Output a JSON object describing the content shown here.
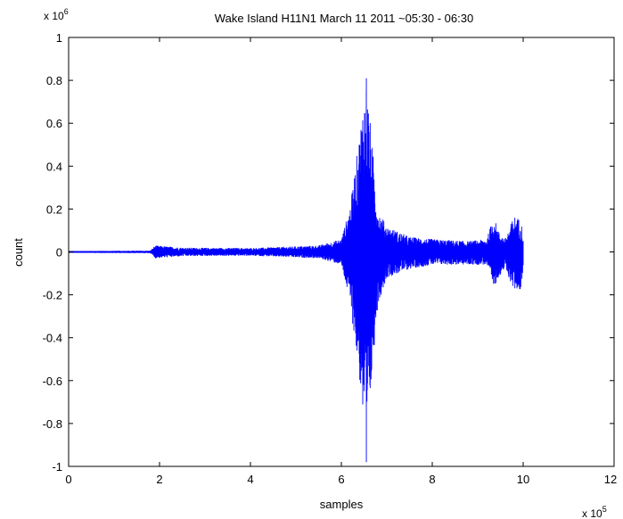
{
  "chart_data": {
    "type": "line",
    "title": "Wake Island H11N1 March 11 2011 ~05:30 - 06:30",
    "xlabel": "samples",
    "ylabel": "count",
    "x_exponent_label": "x 10",
    "x_exponent": "5",
    "y_exponent_label": "x 10",
    "y_exponent": "6",
    "xlim": [
      0,
      12
    ],
    "ylim": [
      -1,
      1
    ],
    "x_ticks": [
      {
        "value": 0,
        "label": "0"
      },
      {
        "value": 2,
        "label": "2"
      },
      {
        "value": 4,
        "label": "4"
      },
      {
        "value": 6,
        "label": "6"
      },
      {
        "value": 8,
        "label": "8"
      },
      {
        "value": 10,
        "label": "10"
      },
      {
        "value": 12,
        "label": "12"
      }
    ],
    "y_ticks": [
      {
        "value": -1,
        "label": "-1"
      },
      {
        "value": -0.8,
        "label": "-0.8"
      },
      {
        "value": -0.6,
        "label": "-0.6"
      },
      {
        "value": -0.4,
        "label": "-0.4"
      },
      {
        "value": -0.2,
        "label": "-0.2"
      },
      {
        "value": 0,
        "label": "0"
      },
      {
        "value": 0.2,
        "label": "0.2"
      },
      {
        "value": 0.4,
        "label": "0.4"
      },
      {
        "value": 0.6,
        "label": "0.6"
      },
      {
        "value": 0.8,
        "label": "0.8"
      },
      {
        "value": 1,
        "label": "1"
      }
    ],
    "grid": false,
    "color": "#0000ff",
    "series": [
      {
        "envelope": [
          {
            "x": 0.0,
            "upper": 0.004,
            "lower": -0.004
          },
          {
            "x": 1.8,
            "upper": 0.006,
            "lower": -0.006
          },
          {
            "x": 1.9,
            "upper": 0.03,
            "lower": -0.03
          },
          {
            "x": 2.5,
            "upper": 0.02,
            "lower": -0.02
          },
          {
            "x": 4.0,
            "upper": 0.018,
            "lower": -0.018
          },
          {
            "x": 5.5,
            "upper": 0.03,
            "lower": -0.03
          },
          {
            "x": 6.0,
            "upper": 0.06,
            "lower": -0.06
          },
          {
            "x": 6.2,
            "upper": 0.22,
            "lower": -0.25
          },
          {
            "x": 6.4,
            "upper": 0.55,
            "lower": -0.6
          },
          {
            "x": 6.5,
            "upper": 0.75,
            "lower": -0.85
          },
          {
            "x": 6.55,
            "upper": 0.81,
            "lower": -0.98
          },
          {
            "x": 6.7,
            "upper": 0.45,
            "lower": -0.5
          },
          {
            "x": 6.8,
            "upper": 0.2,
            "lower": -0.25
          },
          {
            "x": 7.0,
            "upper": 0.12,
            "lower": -0.12
          },
          {
            "x": 7.5,
            "upper": 0.07,
            "lower": -0.08
          },
          {
            "x": 8.0,
            "upper": 0.06,
            "lower": -0.06
          },
          {
            "x": 8.8,
            "upper": 0.05,
            "lower": -0.06
          },
          {
            "x": 9.2,
            "upper": 0.06,
            "lower": -0.06
          },
          {
            "x": 9.35,
            "upper": 0.17,
            "lower": -0.18
          },
          {
            "x": 9.45,
            "upper": 0.1,
            "lower": -0.12
          },
          {
            "x": 9.6,
            "upper": 0.06,
            "lower": -0.08
          },
          {
            "x": 9.8,
            "upper": 0.17,
            "lower": -0.18
          },
          {
            "x": 9.95,
            "upper": 0.15,
            "lower": -0.18
          },
          {
            "x": 10.0,
            "upper": 0.08,
            "lower": -0.08
          }
        ]
      }
    ]
  }
}
